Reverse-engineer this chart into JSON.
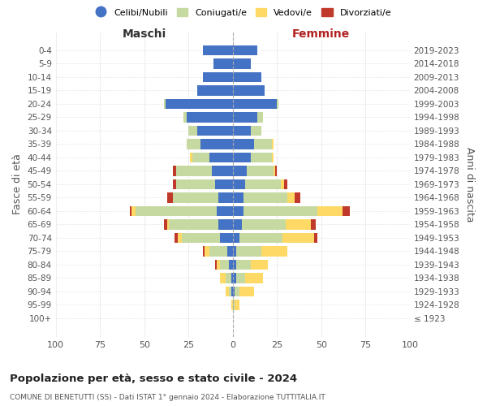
{
  "age_groups": [
    "100+",
    "95-99",
    "90-94",
    "85-89",
    "80-84",
    "75-79",
    "70-74",
    "65-69",
    "60-64",
    "55-59",
    "50-54",
    "45-49",
    "40-44",
    "35-39",
    "30-34",
    "25-29",
    "20-24",
    "15-19",
    "10-14",
    "5-9",
    "0-4"
  ],
  "birth_years": [
    "≤ 1923",
    "1924-1928",
    "1929-1933",
    "1934-1938",
    "1939-1943",
    "1944-1948",
    "1949-1953",
    "1954-1958",
    "1959-1963",
    "1964-1968",
    "1969-1973",
    "1974-1978",
    "1979-1983",
    "1984-1988",
    "1989-1993",
    "1994-1998",
    "1999-2003",
    "2004-2008",
    "2009-2013",
    "2014-2018",
    "2019-2023"
  ],
  "colors": {
    "celibi": "#4472C4",
    "coniugati": "#c5d9a0",
    "vedovi": "#ffd966",
    "divorziati": "#c0392b"
  },
  "maschi": {
    "celibi": [
      0,
      0,
      1,
      1,
      2,
      3,
      7,
      8,
      9,
      8,
      10,
      12,
      13,
      18,
      20,
      26,
      38,
      20,
      17,
      11,
      17
    ],
    "coniugati": [
      0,
      0,
      1,
      3,
      5,
      10,
      22,
      28,
      46,
      26,
      22,
      20,
      10,
      8,
      5,
      2,
      1,
      0,
      0,
      0,
      0
    ],
    "vedovi": [
      0,
      1,
      2,
      3,
      2,
      3,
      2,
      1,
      2,
      0,
      0,
      0,
      1,
      0,
      0,
      0,
      0,
      0,
      0,
      0,
      0
    ],
    "divorziati": [
      0,
      0,
      0,
      0,
      1,
      1,
      2,
      2,
      1,
      3,
      2,
      2,
      0,
      0,
      0,
      0,
      0,
      0,
      0,
      0,
      0
    ]
  },
  "femmine": {
    "celibi": [
      0,
      0,
      1,
      2,
      2,
      2,
      4,
      5,
      6,
      6,
      7,
      8,
      10,
      12,
      10,
      14,
      25,
      18,
      16,
      10,
      14
    ],
    "coniugati": [
      0,
      1,
      3,
      5,
      8,
      14,
      24,
      25,
      42,
      25,
      20,
      15,
      12,
      10,
      6,
      3,
      1,
      0,
      0,
      0,
      0
    ],
    "vedovi": [
      0,
      3,
      8,
      10,
      10,
      15,
      18,
      14,
      14,
      4,
      2,
      1,
      1,
      1,
      0,
      0,
      0,
      0,
      0,
      0,
      0
    ],
    "divorziati": [
      0,
      0,
      0,
      0,
      0,
      0,
      2,
      3,
      4,
      3,
      2,
      1,
      0,
      0,
      0,
      0,
      0,
      0,
      0,
      0,
      0
    ]
  },
  "xlim": 100,
  "title": "Popolazione per età, sesso e stato civile - 2024",
  "subtitle": "COMUNE DI BENETUTTI (SS) - Dati ISTAT 1° gennaio 2024 - Elaborazione TUTTITALIA.IT",
  "ylabel_left": "Fasce di età",
  "ylabel_right": "Anni di nascita",
  "xlabel_left": "Maschi",
  "xlabel_right": "Femmine",
  "legend_labels": [
    "Celibi/Nubili",
    "Coniugati/e",
    "Vedovi/e",
    "Divorziati/e"
  ],
  "background_color": "#ffffff",
  "grid_color": "#cccccc"
}
